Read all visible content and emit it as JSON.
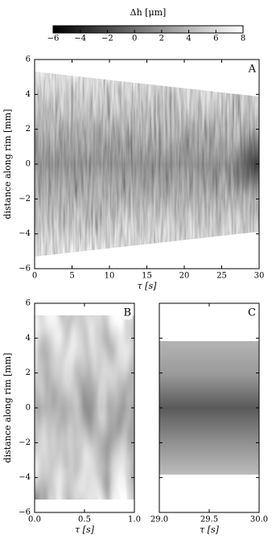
{
  "colorbar": {
    "label": "Δh [μm]",
    "lim": [
      -6,
      8
    ],
    "ticks": [
      {
        "value": -6,
        "label": "−6"
      },
      {
        "value": -4,
        "label": "−4"
      },
      {
        "value": -2,
        "label": "−2"
      },
      0,
      2,
      4,
      6,
      8
    ],
    "colors": [
      "#000000",
      "#ffffff"
    ]
  },
  "chart_data": [
    {
      "type": "heatmap",
      "panel_label": "A",
      "xlabel": "τ [s]",
      "ylabel": "distance along rim [mm]",
      "xlim": [
        0,
        30
      ],
      "xticks": [
        0,
        5,
        10,
        15,
        20,
        25,
        30
      ],
      "ylim": [
        -6,
        6
      ],
      "yticks": [
        {
          "value": -6,
          "label": "−6"
        },
        {
          "value": -4,
          "label": "−4"
        },
        {
          "value": -2,
          "label": "−2"
        },
        0,
        2,
        4,
        6
      ]
    },
    {
      "type": "heatmap",
      "panel_label": "B",
      "xlabel": "τ [s]",
      "ylabel": "distance along rim [mm]",
      "xlim": [
        0,
        1
      ],
      "xticks": [
        {
          "value": 0,
          "label": "0.0"
        },
        0.5,
        {
          "value": 1,
          "label": "1.0"
        }
      ],
      "ylim": [
        -6,
        6
      ],
      "yticks": [
        {
          "value": -6,
          "label": "−6"
        },
        {
          "value": -4,
          "label": "−4"
        },
        {
          "value": -2,
          "label": "−2"
        },
        0,
        2,
        4,
        6
      ]
    },
    {
      "type": "heatmap",
      "panel_label": "C",
      "xlabel": "τ [s]",
      "xlim": [
        29,
        30
      ],
      "xticks": [
        {
          "value": 29,
          "label": "29.0"
        },
        29.5,
        {
          "value": 30,
          "label": "30.0"
        }
      ],
      "ylim": [
        -6,
        6
      ],
      "yticks": [
        -6,
        -4,
        -2,
        0,
        2,
        4,
        6
      ]
    }
  ]
}
